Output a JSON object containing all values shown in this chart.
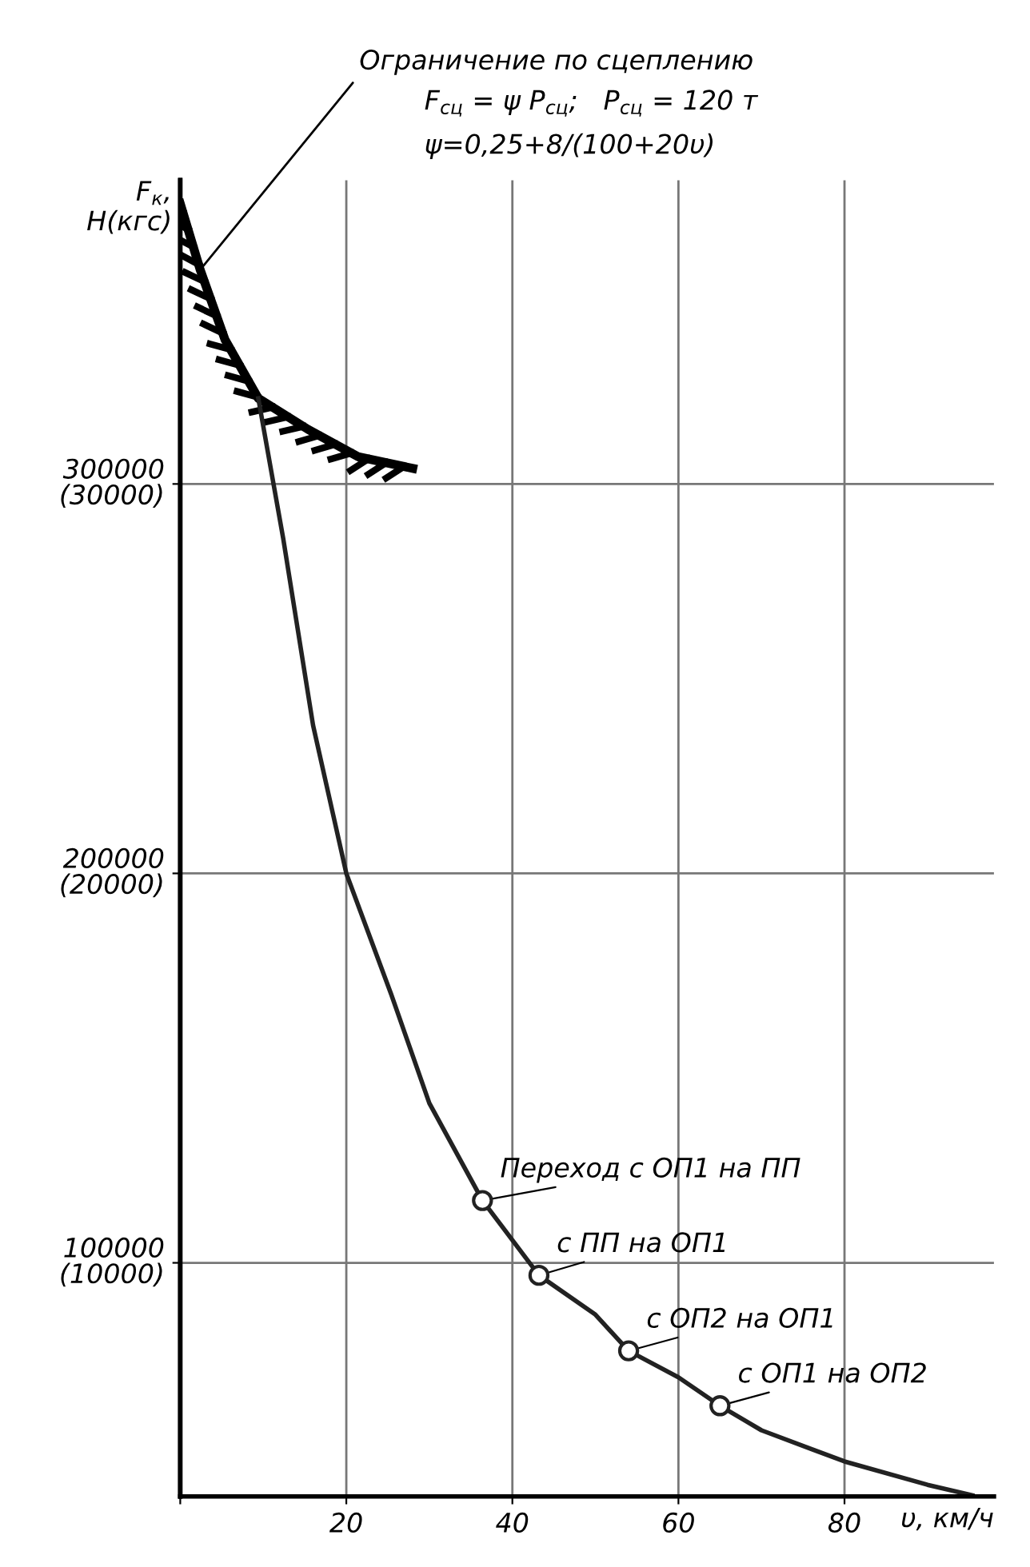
{
  "chart_data": {
    "type": "line",
    "xlabel": "υ, км/ч",
    "ylabel": "F$_{к}$,\nН(кгс)",
    "xlim": [
      0,
      98
    ],
    "ylim": [
      40000,
      378000
    ],
    "xticks": [
      {
        "value": 0,
        "label": null
      },
      20,
      40,
      60,
      80
    ],
    "yticks": [
      100000,
      200000,
      300000
    ],
    "y2lim": [
      4000,
      37800
    ],
    "y2ticks": [
      {
        "value": 10000,
        "label": "(10000)"
      },
      {
        "value": 20000,
        "label": "(20000)"
      },
      {
        "value": 30000,
        "label": "(30000)"
      }
    ],
    "grid": true,
    "series": [
      {
        "color": "#000000",
        "line_style": "solid",
        "x": [
          0,
          2.4,
          5.4,
          9.4,
          15.4,
          21.4,
          28
        ],
        "values": [
          372000,
          355000,
          337000,
          322000,
          314000,
          307000,
          304000
        ]
      },
      {
        "color": "#222222",
        "line_style": "solid",
        "x": [
          9.4,
          12.4,
          16,
          20,
          25.4,
          30,
          36.4,
          43.2,
          50,
          54,
          60,
          65,
          70,
          80,
          90,
          95.4
        ],
        "values": [
          322000,
          286000,
          238000,
          200000,
          169000,
          141000,
          116000,
          96800,
          86700,
          77400,
          70600,
          63300,
          57000,
          49000,
          43000,
          40300
        ]
      },
      {
        "type": "scatter",
        "color": "#222222",
        "marker": "circle",
        "x": [
          36.4,
          43.2,
          54,
          65
        ],
        "values": [
          116000,
          96800,
          77400,
          63300
        ]
      }
    ],
    "annotations": [
      {
        "text": "Ограничение по сцеплению",
        "x": 2.4,
        "y": 355000
      },
      "F$_{сц}$ = ψ P$_{сц}$;   P$_{сц}$ = 120 т",
      "ψ=0,25+8/(100+20υ)",
      {
        "text": "Переход с ОП1 на ПП",
        "x": 36.4,
        "y": 116000
      },
      {
        "text": "с ПП на ОП1",
        "x": 43.2,
        "y": 96800
      },
      {
        "text": "с ОП2 на ОП1",
        "x": 54,
        "y": 77400
      },
      {
        "text": "с ОП1 на ОП2",
        "x": 65,
        "y": 63300
      }
    ]
  }
}
